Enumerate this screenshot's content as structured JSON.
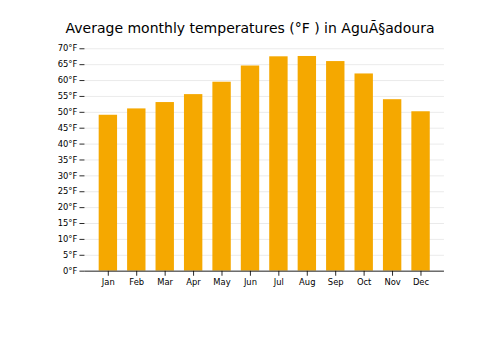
{
  "chart_data": {
    "type": "bar",
    "title": "Average monthly temperatures (°F ) in AguÃ§adoura",
    "categories": [
      "Jan",
      "Feb",
      "Mar",
      "Apr",
      "May",
      "Jun",
      "Jul",
      "Aug",
      "Sep",
      "Oct",
      "Nov",
      "Dec"
    ],
    "values": [
      49.1,
      51.1,
      53.1,
      55.6,
      59.5,
      64.6,
      67.5,
      67.6,
      66.0,
      62.1,
      54.0,
      50.2
    ],
    "color": "#F5A800",
    "ylim": [
      0,
      70
    ],
    "yticks": [
      {
        "value": 0,
        "label": "0°F"
      },
      {
        "value": 5,
        "label": "5°F"
      },
      {
        "value": 10,
        "label": "10°F"
      },
      {
        "value": 15,
        "label": "15°F"
      },
      {
        "value": 20,
        "label": "20°F"
      },
      {
        "value": 25,
        "label": "25°F"
      },
      {
        "value": 30,
        "label": "30°F"
      },
      {
        "value": 35,
        "label": "35°F"
      },
      {
        "value": 40,
        "label": "40°F"
      },
      {
        "value": 45,
        "label": "45°F"
      },
      {
        "value": 50,
        "label": "50°F"
      },
      {
        "value": 55,
        "label": "55°F"
      },
      {
        "value": 60,
        "label": "60°F"
      },
      {
        "value": 65,
        "label": "65°F"
      },
      {
        "value": 70,
        "label": "70°F"
      }
    ],
    "grid": true
  }
}
